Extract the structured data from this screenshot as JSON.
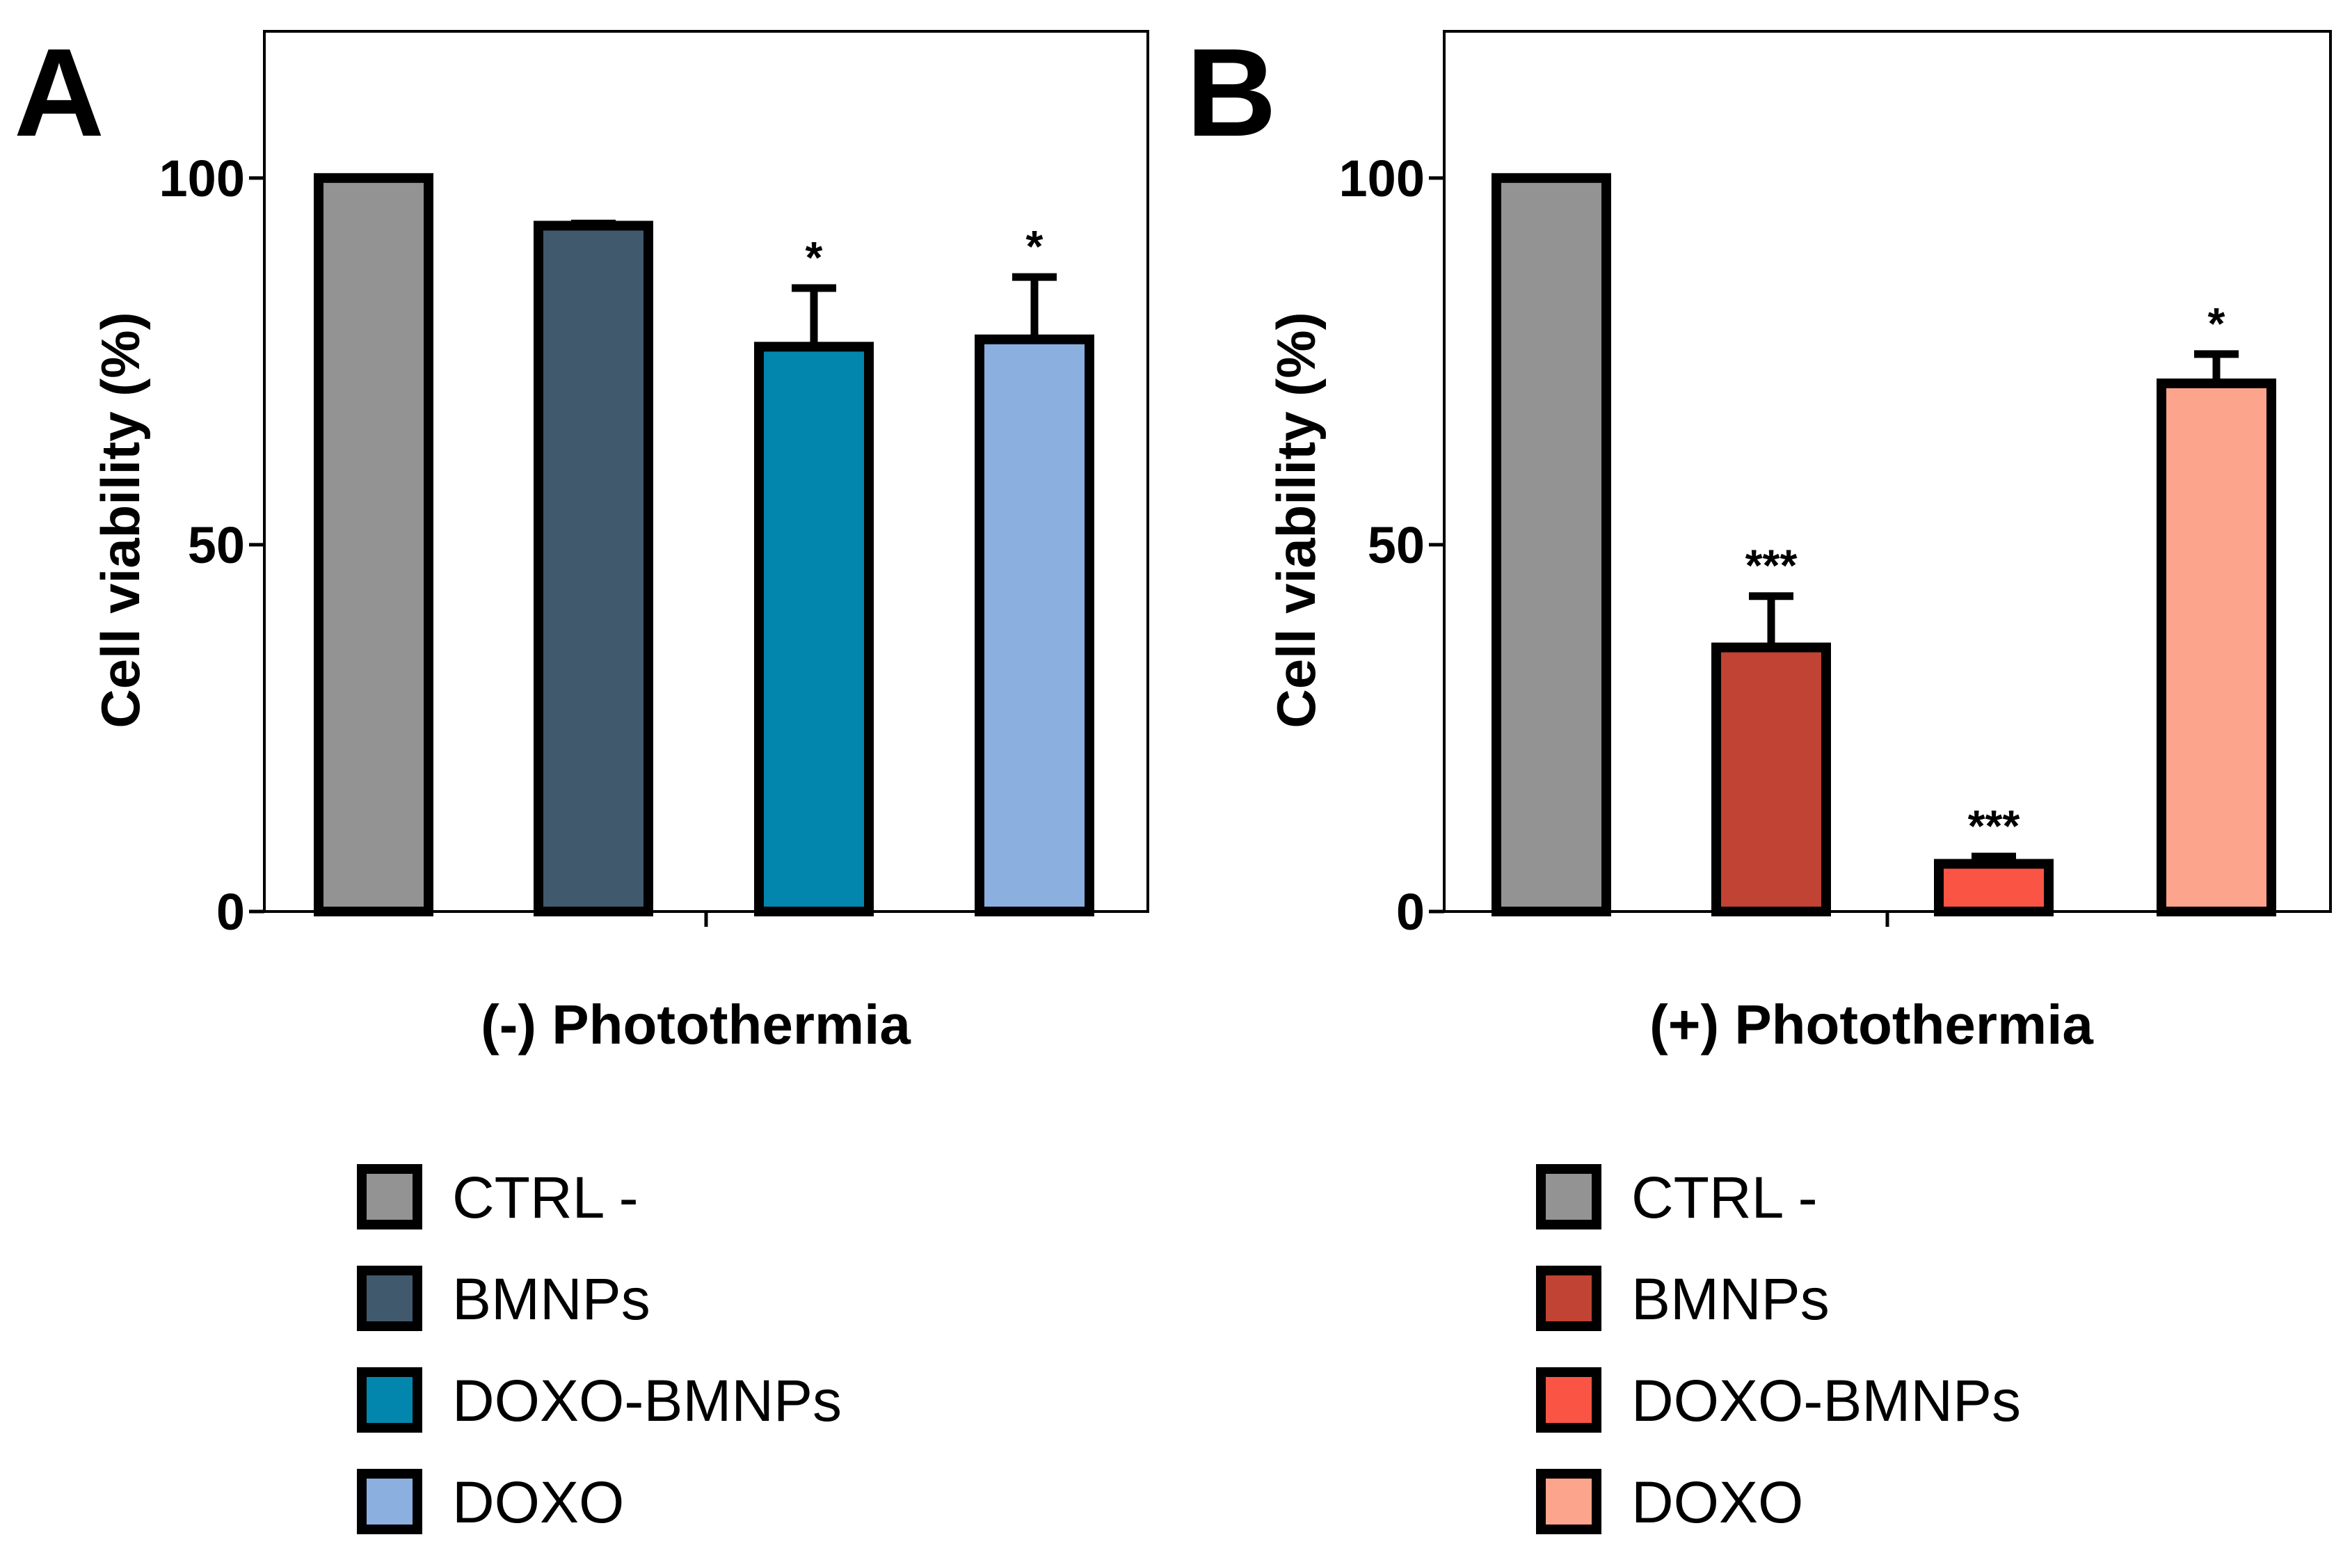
{
  "chart_data": [
    {
      "type": "bar",
      "panel_label": "A",
      "title": "",
      "xlabel": "(-) Photothermia",
      "ylabel": "Cell viability (%)",
      "ylim": [
        0,
        120
      ],
      "yticks": [
        0,
        50,
        100
      ],
      "grid": false,
      "legend_position": "bottom",
      "categories": [
        "CTRL -",
        "BMNPs",
        "DOXO-BMNPs",
        "DOXO"
      ],
      "values": [
        100,
        93.5,
        77,
        78
      ],
      "errors": [
        0,
        0.3,
        8,
        8.5
      ],
      "significance": [
        "",
        "",
        "*",
        "*"
      ],
      "colors": [
        "#939393",
        "#41596c",
        "#0286ad",
        "#8bafde"
      ]
    },
    {
      "type": "bar",
      "panel_label": "B",
      "title": "",
      "xlabel": "(+) Photothermia",
      "ylabel": "Cell viability (%)",
      "ylim": [
        0,
        120
      ],
      "yticks": [
        0,
        50,
        100
      ],
      "grid": false,
      "legend_position": "bottom",
      "categories": [
        "CTRL -",
        "BMNPs",
        "DOXO-BMNPs",
        "DOXO"
      ],
      "values": [
        100,
        36,
        6.5,
        72
      ],
      "errors": [
        0,
        7,
        1,
        4
      ],
      "significance": [
        "",
        "***",
        "***",
        "*"
      ],
      "colors": [
        "#939393",
        "#c04333",
        "#fa5445",
        "#fda48c"
      ]
    }
  ]
}
